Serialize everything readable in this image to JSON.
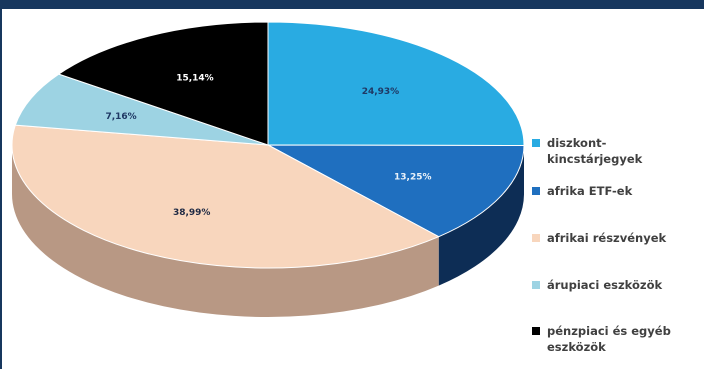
{
  "chart_data": {
    "type": "pie",
    "title": "",
    "labels": [
      "diszkont-kincstárjegyek",
      "afrika ETF-ek",
      "afrikai részvények",
      "árupiaci eszközök",
      "pénzpiaci és egyéb eszközök"
    ],
    "legend_display": [
      [
        "diszkont-",
        "kincstárjegyek"
      ],
      [
        "afrika ETF-ek"
      ],
      [
        "afrikai részvények"
      ],
      [
        "árupiaci eszközök"
      ],
      [
        "pénzpiaci és egyéb",
        "eszközök"
      ]
    ],
    "values": [
      24.93,
      13.25,
      38.99,
      7.16,
      15.14
    ],
    "data_labels": [
      "24,93%",
      "13,25%",
      "38,99%",
      "7,16%",
      "15,14%"
    ],
    "colors": [
      "#29abe2",
      "#1f6fbf",
      "#f8d6bd",
      "#9dd3e3",
      "#000000"
    ],
    "side_colors": [
      "#1d85b4",
      "#0d2d55",
      "#b89884",
      "#7fb4c3",
      "#111111"
    ],
    "label_colors": [
      "#1f3864",
      "#e9f2fa",
      "#1f2a44",
      "#1f3864",
      "#ffffff"
    ],
    "legend_position": "right",
    "style": "3d"
  }
}
